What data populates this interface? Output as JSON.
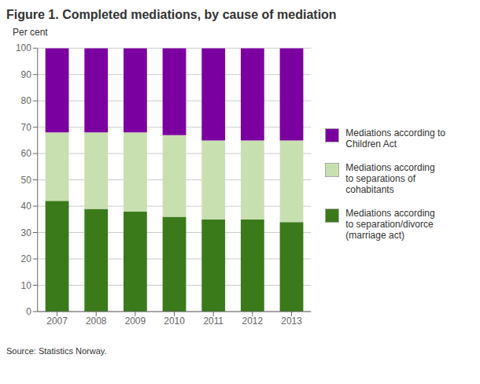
{
  "chart_data": {
    "type": "bar",
    "title": "Figure 1. Completed mediations, by cause of mediation",
    "ylabel": "Per cent",
    "annotations": [
      "Source: Statistics Norway."
    ],
    "categories": [
      "2007",
      "2008",
      "2009",
      "2010",
      "2011",
      "2012",
      "2013"
    ],
    "series": [
      {
        "name": "Mediations according\nto separation/divorce\n(marriage act)",
        "color": "#3a7a1a",
        "values": [
          42,
          39,
          38,
          36,
          35,
          35,
          34
        ]
      },
      {
        "name": "Mediations according\nto separations of\ncohabitants",
        "color": "#c8e0b0",
        "values": [
          26,
          29,
          30,
          31,
          30,
          30,
          31
        ]
      },
      {
        "name": "Mediations according to\nChildren Act",
        "color": "#7b00a0",
        "values": [
          32,
          32,
          32,
          33,
          35,
          35,
          35
        ]
      }
    ],
    "stacked": true,
    "ylim": [
      0,
      100
    ],
    "yticks": [
      0,
      10,
      20,
      30,
      40,
      50,
      60,
      70,
      80,
      90,
      100
    ],
    "grid": true
  }
}
